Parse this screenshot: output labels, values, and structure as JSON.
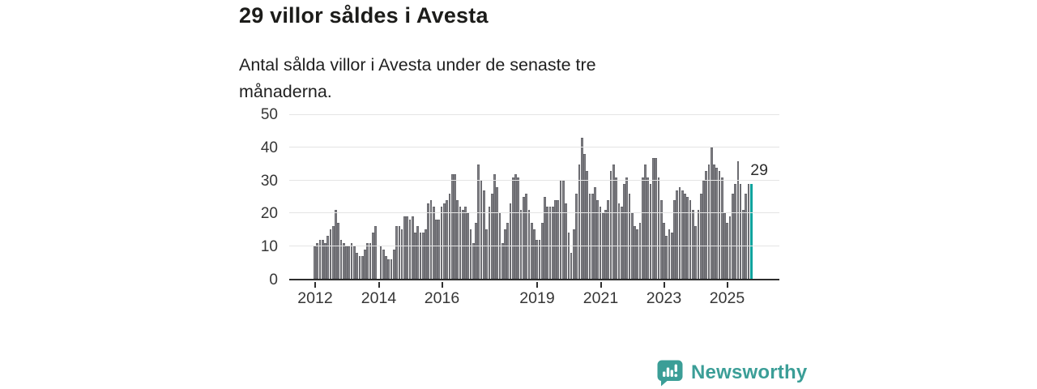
{
  "header": {
    "title": "29 villor såldes i Avesta",
    "subtitle": "Antal sålda villor i Avesta under de senaste tre månaderna."
  },
  "chart_data": {
    "type": "bar",
    "title": "29 villor såldes i Avesta",
    "x_start": "2012-01",
    "x_end": "2025-10",
    "x_unit": "month",
    "values": [
      10,
      11,
      12,
      12,
      11,
      13,
      15,
      16,
      21,
      17,
      12,
      11,
      10,
      10,
      11,
      10,
      8,
      7,
      7,
      9,
      11,
      11,
      14,
      16,
      0,
      10,
      9,
      7,
      6,
      6,
      9,
      16,
      16,
      15,
      19,
      19,
      18,
      19,
      14,
      16,
      14,
      14,
      15,
      23,
      24,
      22,
      18,
      18,
      22,
      23,
      24,
      26,
      32,
      32,
      24,
      22,
      21,
      22,
      20,
      15,
      11,
      17,
      35,
      30,
      27,
      15,
      22,
      26,
      32,
      28,
      20,
      11,
      15,
      17,
      23,
      31,
      32,
      31,
      21,
      25,
      26,
      21,
      17,
      15,
      12,
      12,
      17,
      25,
      22,
      22,
      22,
      24,
      24,
      30,
      30,
      23,
      14,
      8,
      15,
      26,
      35,
      43,
      38,
      33,
      26,
      26,
      28,
      24,
      22,
      20,
      21,
      24,
      33,
      35,
      31,
      23,
      22,
      29,
      31,
      26,
      20,
      16,
      15,
      17,
      31,
      35,
      31,
      29,
      37,
      37,
      31,
      24,
      17,
      13,
      15,
      14,
      24,
      27,
      28,
      27,
      26,
      25,
      24,
      21,
      16,
      21,
      26,
      30,
      33,
      35,
      40,
      35,
      34,
      33,
      31,
      20,
      17,
      19,
      26,
      29,
      36,
      29,
      21,
      26,
      29,
      29
    ],
    "highlight_index": 165,
    "highlight_value": 29,
    "highlight_label": "29",
    "ylim": [
      0,
      50
    ],
    "yticks": [
      0,
      10,
      20,
      30,
      40,
      50
    ],
    "xticks": [
      {
        "label": "2012",
        "offset": 32
      },
      {
        "label": "2014",
        "offset": 110.5
      },
      {
        "label": "2016",
        "offset": 188.5
      },
      {
        "label": "2019",
        "offset": 306
      },
      {
        "label": "2021",
        "offset": 384.5
      },
      {
        "label": "2023",
        "offset": 462.5
      },
      {
        "label": "2025",
        "offset": 540.5
      }
    ],
    "grid": "horizontal",
    "legend": "none",
    "bar_color": "#7f7f84",
    "highlight_color": "#0ba39d"
  },
  "annotation": {
    "last_value_label": "29"
  },
  "footer": {
    "brand": "Newsworthy",
    "brand_color": "#3b9e97"
  }
}
